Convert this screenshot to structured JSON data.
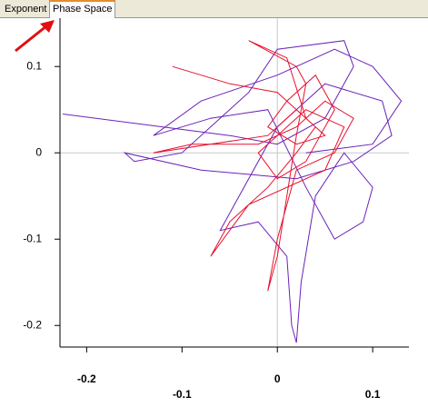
{
  "tabs": [
    "Exponent",
    "Phase Space"
  ],
  "selected_tab": 1,
  "chart_data": {
    "type": "line",
    "xlim": [
      -0.228,
      0.138
    ],
    "ylim": [
      -0.225,
      0.156
    ],
    "xticks": [
      -0.2,
      -0.1,
      0,
      0.1
    ],
    "yticks": [
      -0.2,
      -0.1,
      0,
      0.1
    ],
    "zero_lines": true,
    "series": [
      {
        "color": "#6a22b8",
        "x": [
          -0.225,
          -0.12,
          -0.05,
          0.0,
          0.05,
          0.08,
          0.07,
          0.0,
          -0.03,
          -0.1,
          -0.15,
          -0.16,
          -0.08,
          0.02,
          0.08,
          0.12,
          0.11,
          0.05,
          0.0,
          -0.04,
          -0.06,
          -0.02,
          0.01,
          0.015,
          0.02,
          0.025,
          0.04,
          0.07,
          0.1,
          0.09,
          0.06,
          0.03,
          -0.01,
          -0.07,
          -0.13,
          -0.08,
          0.0,
          0.06,
          0.1,
          0.13,
          0.1,
          0.03
        ],
        "y": [
          0.045,
          0.03,
          0.02,
          0.01,
          0.04,
          0.1,
          0.13,
          0.12,
          0.07,
          0.0,
          -0.01,
          0.0,
          -0.02,
          -0.03,
          -0.01,
          0.02,
          0.06,
          0.08,
          0.03,
          -0.05,
          -0.09,
          -0.08,
          -0.12,
          -0.2,
          -0.22,
          -0.15,
          -0.05,
          0.0,
          -0.04,
          -0.08,
          -0.1,
          -0.04,
          0.05,
          0.04,
          0.02,
          0.06,
          0.09,
          0.12,
          0.1,
          0.06,
          0.01,
          0.0
        ]
      },
      {
        "color": "#e8102e",
        "x": [
          -0.11,
          -0.05,
          0.0,
          0.03,
          0.05,
          0.02,
          -0.01,
          0.01,
          0.04,
          0.06,
          0.03,
          0.0,
          -0.02,
          0.0,
          0.03,
          0.07,
          0.05,
          -0.03,
          -0.07,
          -0.05,
          -0.01,
          0.02,
          0.04,
          0.02,
          -0.01,
          -0.13,
          -0.09,
          -0.02,
          0.02,
          0.05,
          0.08,
          0.06,
          0.02,
          0.0,
          -0.01,
          0.0,
          0.01,
          0.02,
          0.03,
          0.02,
          -0.03,
          0.01,
          0.03
        ],
        "y": [
          0.1,
          0.08,
          0.07,
          0.04,
          0.02,
          0.01,
          0.03,
          0.06,
          0.09,
          0.05,
          -0.01,
          -0.03,
          0.0,
          0.02,
          0.05,
          0.03,
          -0.02,
          -0.06,
          -0.12,
          -0.08,
          -0.04,
          0.0,
          0.03,
          0.05,
          0.02,
          0.0,
          0.01,
          0.01,
          0.03,
          0.06,
          0.04,
          0.0,
          -0.02,
          -0.1,
          -0.16,
          -0.12,
          -0.05,
          0.02,
          0.08,
          0.1,
          0.13,
          0.11,
          0.04
        ]
      }
    ]
  }
}
